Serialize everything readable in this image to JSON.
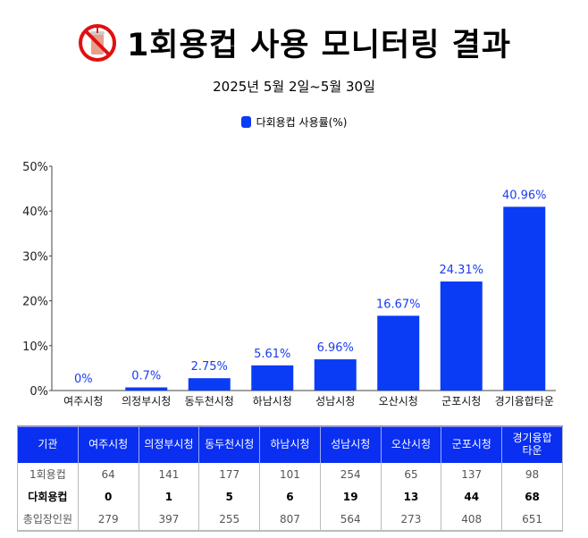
{
  "header": {
    "title": "1회용컵 사용 모니터링 결과",
    "subtitle": "2025년 5월 2일~5월 30일",
    "icon": "no-disposable-cup-icon"
  },
  "chart_data": {
    "type": "bar",
    "categories": [
      "여주시청",
      "의정부시청",
      "동두천시청",
      "하남시청",
      "성남시청",
      "오산시청",
      "군포시청",
      "경기융합타운"
    ],
    "series": [
      {
        "name": "다회용컵 사용률(%)",
        "values": [
          0,
          0.7,
          2.75,
          5.61,
          6.96,
          16.67,
          24.31,
          40.96
        ]
      }
    ],
    "data_labels": [
      "0%",
      "0.7%",
      "2.75%",
      "5.61%",
      "6.96%",
      "16.67%",
      "24.31%",
      "40.96%"
    ],
    "ylim": [
      0,
      50
    ],
    "yticks": [
      0,
      10,
      20,
      30,
      40,
      50
    ],
    "ytick_labels": [
      "0%",
      "10%",
      "20%",
      "30%",
      "40%",
      "50%"
    ],
    "grid": false,
    "legend": "top-center",
    "colors": {
      "bar": "#0a3cf5",
      "label": "#1a3cf0"
    }
  },
  "table": {
    "headers": [
      "기관",
      "여주시청",
      "의정부시청",
      "동두천시청",
      "하남시청",
      "성남시청",
      "오산시청",
      "군포시청",
      "경기융합\n타운"
    ],
    "rows": [
      {
        "label": "1회용컵",
        "values": [
          "64",
          "141",
          "177",
          "101",
          "254",
          "65",
          "137",
          "98"
        ]
      },
      {
        "label": "다회용컵",
        "values": [
          "0",
          "1",
          "5",
          "6",
          "19",
          "13",
          "44",
          "68"
        ]
      },
      {
        "label": "총입장인원",
        "values": [
          "279",
          "397",
          "255",
          "807",
          "564",
          "273",
          "408",
          "651"
        ]
      }
    ]
  }
}
